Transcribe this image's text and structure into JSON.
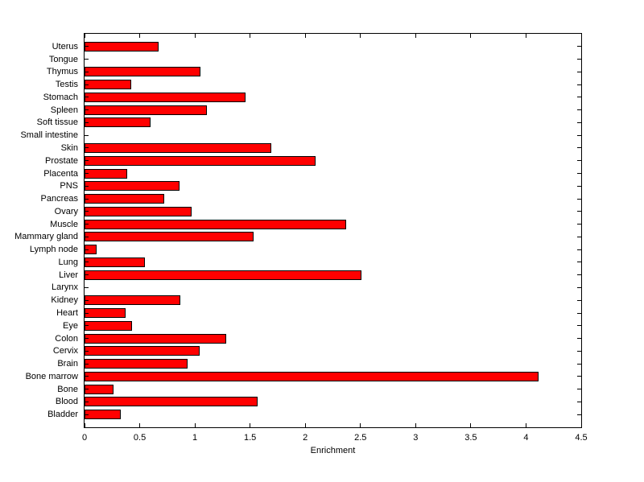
{
  "figure": {
    "background": "#FFFFFF",
    "bar_fill": "#FF0000",
    "bar_edge": "#000000",
    "axis_color": "#000000",
    "text_color": "#000000"
  },
  "chart_data": {
    "type": "bar",
    "orientation": "horizontal",
    "title": "",
    "xlabel": "Enrichment",
    "ylabel": "",
    "xlim": [
      0,
      4.5
    ],
    "grid": false,
    "legend": null,
    "xticks": [
      0,
      0.5,
      1,
      1.5,
      2,
      2.5,
      3,
      3.5,
      4,
      4.5
    ],
    "xtick_labels": [
      "0",
      "0.5",
      "1",
      "1.5",
      "2",
      "2.5",
      "3",
      "3.5",
      "4",
      "4.5"
    ],
    "categories_top_to_bottom": [
      "Uterus",
      "Tongue",
      "Thymus",
      "Testis",
      "Stomach",
      "Spleen",
      "Soft tissue",
      "Small intestine",
      "Skin",
      "Prostate",
      "Placenta",
      "PNS",
      "Pancreas",
      "Ovary",
      "Muscle",
      "Mammary gland",
      "Lymph node",
      "Lung",
      "Liver",
      "Larynx",
      "Kidney",
      "Heart",
      "Eye",
      "Colon",
      "Cervix",
      "Brain",
      "Bone marrow",
      "Bone",
      "Blood",
      "Bladder"
    ],
    "values": [
      0.67,
      0,
      1.05,
      0.42,
      1.46,
      1.11,
      0.6,
      0,
      1.69,
      2.09,
      0.39,
      0.86,
      0.72,
      0.97,
      2.37,
      1.53,
      0.11,
      0.55,
      2.51,
      0,
      0.87,
      0.37,
      0.43,
      1.28,
      1.04,
      0.93,
      4.11,
      0.26,
      1.57,
      0.33
    ]
  }
}
